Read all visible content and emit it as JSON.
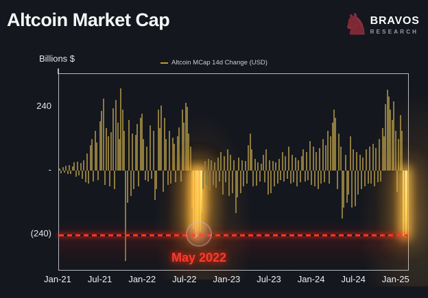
{
  "header": {
    "title": "Altcoin Market Cap",
    "brand": {
      "name": "BRAVOS",
      "sub": "RESEARCH",
      "logo_icon": "bull-chess-knight-icon",
      "logo_color": "#8d2f3e"
    }
  },
  "chart": {
    "y_axis_title": "Billions $",
    "legend": {
      "label": "Altcoin MCap 14d Change (USD)",
      "swatch_color": "#c79a2e"
    },
    "y_ticks": [
      "240",
      "-",
      "(240)"
    ],
    "annotation_label": "May 2022"
  },
  "colors": {
    "background": "#15171e",
    "bar": "#8e7b3e",
    "bar_highlight": "#ffd95c",
    "threshold_red": "#ff3526",
    "annotation_red": "#ff3a2b",
    "axis_border": "#d2d6db",
    "text": "#f7f8f9"
  },
  "chart_data": {
    "type": "bar",
    "title": "Altcoin Market Cap",
    "series_name": "Altcoin MCap 14d Change (USD)",
    "unit": "billions USD",
    "x_start": "2021-01",
    "x_end": "2025-02",
    "interval": "weekly",
    "x_tick_labels": [
      "Jan-21",
      "Jul-21",
      "Jan-22",
      "Jul-22",
      "Jan-23",
      "Jul-23",
      "Jan-24",
      "Jul-24",
      "Jan-25"
    ],
    "y_tick_values": [
      240,
      0,
      -240
    ],
    "ylim": [
      -370,
      365
    ],
    "grid": false,
    "legend_position": "top-center",
    "threshold_line": {
      "y": -240,
      "style": "dashed",
      "color": "#ff3526"
    },
    "annotations": [
      {
        "text": "May 2022",
        "x_index": 86,
        "y": -240,
        "marker": "circle-highlight"
      }
    ],
    "highlight_indices": [
      83,
      84,
      85,
      86,
      87,
      88,
      213,
      214,
      215
    ],
    "values": [
      8,
      -10,
      14,
      -8,
      18,
      -14,
      22,
      -12,
      16,
      30,
      -22,
      34,
      -18,
      28,
      -30,
      38,
      -45,
      65,
      -50,
      95,
      120,
      -40,
      150,
      105,
      -35,
      185,
      225,
      270,
      -55,
      160,
      130,
      -60,
      145,
      235,
      -70,
      265,
      180,
      120,
      310,
      230,
      150,
      -340,
      -120,
      190,
      -95,
      140,
      -70,
      135,
      175,
      -60,
      200,
      215,
      120,
      -35,
      90,
      -40,
      170,
      -30,
      150,
      -110,
      -70,
      230,
      160,
      245,
      -80,
      200,
      120,
      -55,
      150,
      -50,
      125,
      100,
      -45,
      130,
      163,
      -40,
      230,
      180,
      255,
      240,
      140,
      90,
      -140,
      -220,
      -255,
      -250,
      -240,
      -230,
      -160,
      -70,
      35,
      -55,
      45,
      -75,
      40,
      -55,
      30,
      -65,
      50,
      -40,
      70,
      -90,
      55,
      -45,
      80,
      -95,
      60,
      -85,
      40,
      -160,
      -100,
      50,
      -85,
      40,
      -60,
      35,
      -50,
      95,
      140,
      80,
      -60,
      45,
      -57,
      30,
      -40,
      25,
      60,
      -45,
      80,
      -90,
      40,
      -85,
      35,
      -60,
      30,
      -50,
      45,
      -35,
      70,
      -40,
      55,
      -30,
      90,
      -50,
      60,
      -45,
      50,
      -60,
      40,
      -45,
      55,
      80,
      -40,
      70,
      -35,
      110,
      -55,
      90,
      -60,
      70,
      -70,
      85,
      -50,
      120,
      -45,
      95,
      150,
      -50,
      130,
      180,
      230,
      200,
      -70,
      140,
      90,
      -180,
      -140,
      60,
      -120,
      -90,
      130,
      -140,
      80,
      -135,
      70,
      -90,
      60,
      -70,
      50,
      -60,
      80,
      -50,
      90,
      -50,
      100,
      -60,
      85,
      -45,
      120,
      -40,
      160,
      130,
      250,
      305,
      280,
      230,
      190,
      260,
      150,
      -80,
      120,
      210,
      150,
      -245,
      -250,
      -240
    ]
  }
}
